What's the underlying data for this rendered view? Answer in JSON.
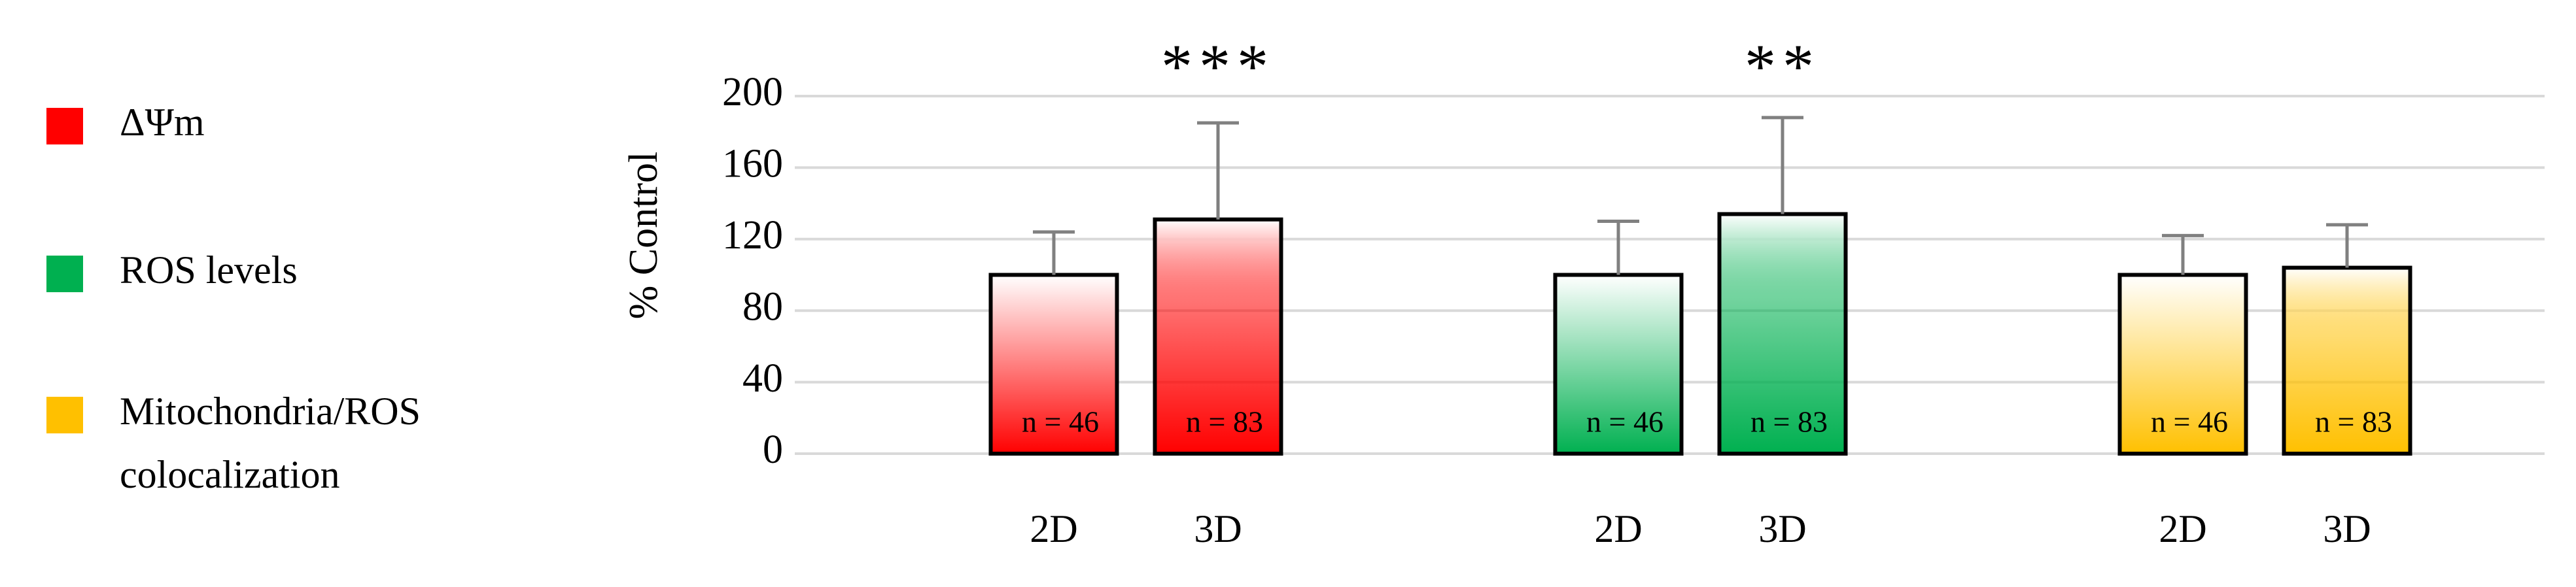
{
  "chart_data": {
    "type": "bar",
    "y_label": "% Control",
    "categories": [
      "2D",
      "3D"
    ],
    "ylim": [
      0,
      200
    ],
    "yticks": [
      0,
      40,
      80,
      120,
      160,
      200
    ],
    "grid": true,
    "legend_position": "left",
    "series": [
      {
        "name": "ΔΨm",
        "color": "#ff0000",
        "values": [
          100,
          131
        ],
        "errors": [
          24,
          54
        ],
        "n_labels": [
          "n = 46",
          "n = 83"
        ],
        "significance": [
          null,
          "***"
        ]
      },
      {
        "name": "ROS levels",
        "color": "#00b050",
        "values": [
          100,
          134
        ],
        "errors": [
          30,
          54
        ],
        "n_labels": [
          "n = 46",
          "n = 83"
        ],
        "significance": [
          null,
          "**"
        ]
      },
      {
        "name": "Mitochondria/ROS colocalization",
        "color": "#ffc000",
        "values": [
          100,
          104
        ],
        "errors": [
          22,
          24
        ],
        "n_labels": [
          "n = 46",
          "n = 83"
        ],
        "significance": [
          null,
          null
        ]
      }
    ]
  }
}
